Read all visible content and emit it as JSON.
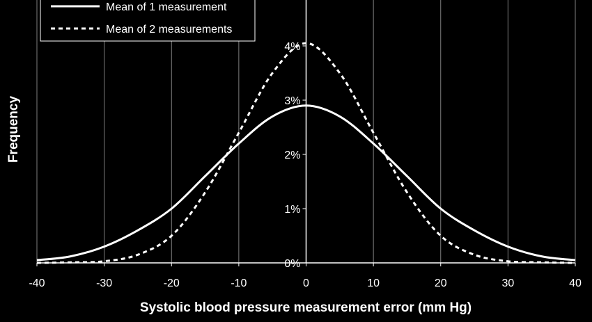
{
  "chart_data": {
    "type": "line",
    "xlabel": "Systolic blood pressure measurement error (mm Hg)",
    "ylabel": "Frequency",
    "xlim": [
      -40,
      40
    ],
    "ylim": [
      0,
      4
    ],
    "x_ticks": [
      "-40",
      "-30",
      "-20",
      "-10",
      "0",
      "10",
      "20",
      "30",
      "40"
    ],
    "y_ticks": [
      "0%",
      "1%",
      "2%",
      "3%",
      "4%"
    ],
    "grid": "vertical",
    "legend_position": "top-left",
    "background": "#000000",
    "line_color": "#ffffff",
    "x": [
      -40,
      -35,
      -30,
      -25,
      -20,
      -15,
      -10,
      -5,
      0,
      5,
      10,
      15,
      20,
      25,
      30,
      35,
      40
    ],
    "series": [
      {
        "name": "Mean of 1 measurement",
        "style": "solid",
        "values": [
          0.05,
          0.12,
          0.3,
          0.6,
          1.0,
          1.6,
          2.2,
          2.7,
          2.9,
          2.7,
          2.2,
          1.6,
          1.0,
          0.6,
          0.3,
          0.12,
          0.05
        ]
      },
      {
        "name": "Mean of 2 measurements",
        "style": "dashed",
        "values": [
          0.0,
          0.01,
          0.03,
          0.15,
          0.5,
          1.3,
          2.4,
          3.5,
          4.05,
          3.5,
          2.4,
          1.3,
          0.5,
          0.15,
          0.03,
          0.01,
          0.0
        ]
      }
    ]
  }
}
